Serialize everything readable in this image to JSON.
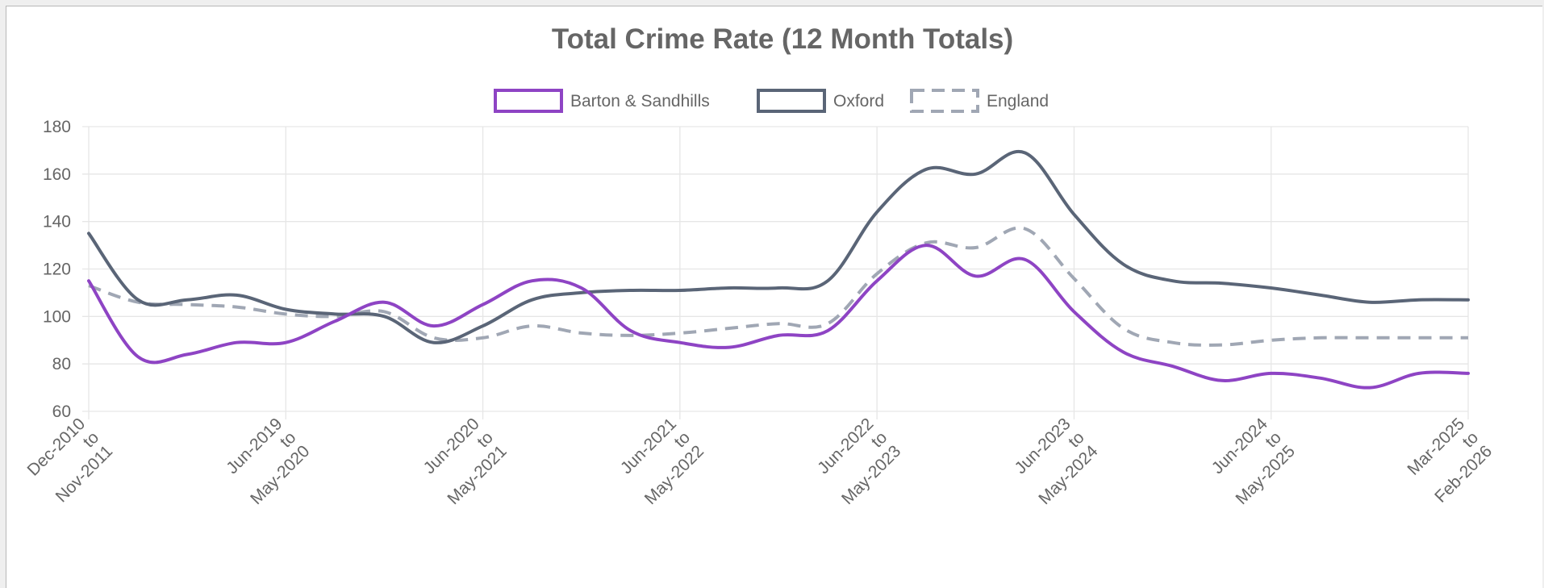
{
  "colors": {
    "grid": "#e6e6e6",
    "text": "#666666",
    "frame_border": "#b8b8b8"
  },
  "chart_data": {
    "type": "line",
    "title": "Total Crime Rate (12 Month Totals)",
    "xlabel": "",
    "ylabel": "",
    "ylim": [
      60,
      180
    ],
    "y_ticks": [
      60,
      80,
      100,
      120,
      140,
      160,
      180
    ],
    "grid": true,
    "legend_position": "top-center",
    "x_tick_labels": [
      [
        "Dec-2010",
        "to",
        "Nov-2011"
      ],
      [
        "Jun-2019",
        "to",
        "May-2020"
      ],
      [
        "Jun-2020",
        "to",
        "May-2021"
      ],
      [
        "Jun-2021",
        "to",
        "May-2022"
      ],
      [
        "Jun-2022",
        "to",
        "May-2023"
      ],
      [
        "Jun-2023",
        "to",
        "May-2024"
      ],
      [
        "Jun-2024",
        "to",
        "May-2025"
      ],
      [
        "Mar-2025",
        "to",
        "Feb-2026"
      ]
    ],
    "series": [
      {
        "name": "Barton & Sandhills",
        "color": "#8e44c4",
        "style": "solid",
        "values": [
          115,
          83,
          84,
          89,
          89,
          98,
          106,
          96,
          105,
          115,
          112,
          94,
          89,
          87,
          92,
          94,
          115,
          130,
          117,
          124,
          102,
          85,
          79,
          73,
          76,
          74,
          70,
          76,
          76
        ]
      },
      {
        "name": "Oxford",
        "color": "#5a6577",
        "style": "solid",
        "values": [
          135,
          107,
          107,
          109,
          103,
          101,
          100,
          89,
          96,
          107,
          110,
          111,
          111,
          112,
          112,
          115,
          144,
          162,
          160,
          169,
          143,
          122,
          115,
          114,
          112,
          109,
          106,
          107,
          107
        ]
      },
      {
        "name": "England",
        "color": "#a0a7b4",
        "style": "dashed",
        "values": [
          113,
          106,
          105,
          104,
          101,
          100,
          102,
          91,
          91,
          96,
          93,
          92,
          93,
          95,
          97,
          97,
          118,
          131,
          129,
          137,
          116,
          95,
          89,
          88,
          90,
          91,
          91,
          91,
          91
        ]
      }
    ]
  }
}
